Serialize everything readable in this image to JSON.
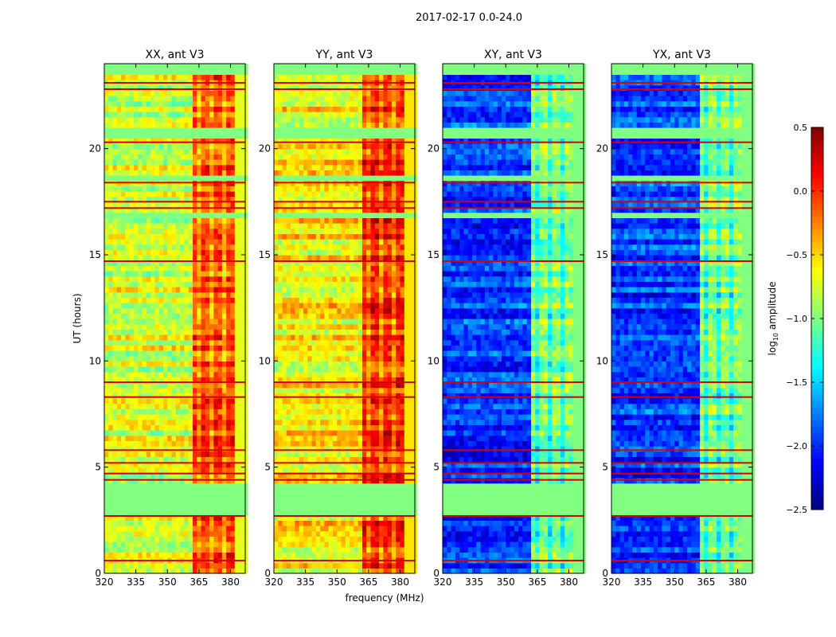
{
  "chart_data": {
    "type": "heatmap",
    "title": "2017-02-17 0.0-24.0",
    "xlabel": "frequency (MHz)",
    "ylabel": "UT (hours)",
    "xlim": [
      320,
      387
    ],
    "ylim": [
      0,
      24
    ],
    "xticks": [
      320,
      335,
      350,
      365,
      380
    ],
    "yticks": [
      0,
      5,
      10,
      15,
      20
    ],
    "panels": [
      {
        "title": "XX, ant V3",
        "base_level": -0.75,
        "band_level": -0.05
      },
      {
        "title": "YY, ant V3",
        "base_level": -0.6,
        "band_level": 0.05
      },
      {
        "title": "XY, ant V3",
        "base_level": -1.95,
        "band_level": -0.95
      },
      {
        "title": "YX, ant V3",
        "base_level": -1.95,
        "band_level": -0.95
      }
    ],
    "bright_band_mhz": [
      362,
      381
    ],
    "flagged_hours": [
      [
        2.8,
        4.2
      ],
      [
        16.8,
        17.0
      ],
      [
        18.5,
        18.8
      ],
      [
        20.4,
        20.9
      ],
      [
        23.4,
        24.0
      ]
    ],
    "flagged_level": -1.0,
    "red_line_hours": [
      0.6,
      2.7,
      4.4,
      4.7,
      5.2,
      5.8,
      8.3,
      9.0,
      14.7,
      17.2,
      17.5,
      18.4,
      20.3,
      22.8,
      23.1
    ],
    "colorbar": {
      "label": "log",
      "label_sub": "10",
      "label_rest": " amplitude",
      "clim": [
        -2.5,
        0.5
      ],
      "ticks": [
        "0.5",
        "0.0",
        "−0.5",
        "−1.0",
        "−1.5",
        "−2.0",
        "−2.5"
      ],
      "tick_values": [
        0.5,
        0.0,
        -0.5,
        -1.0,
        -1.5,
        -2.0,
        -2.5
      ],
      "colormap": "jet"
    }
  }
}
